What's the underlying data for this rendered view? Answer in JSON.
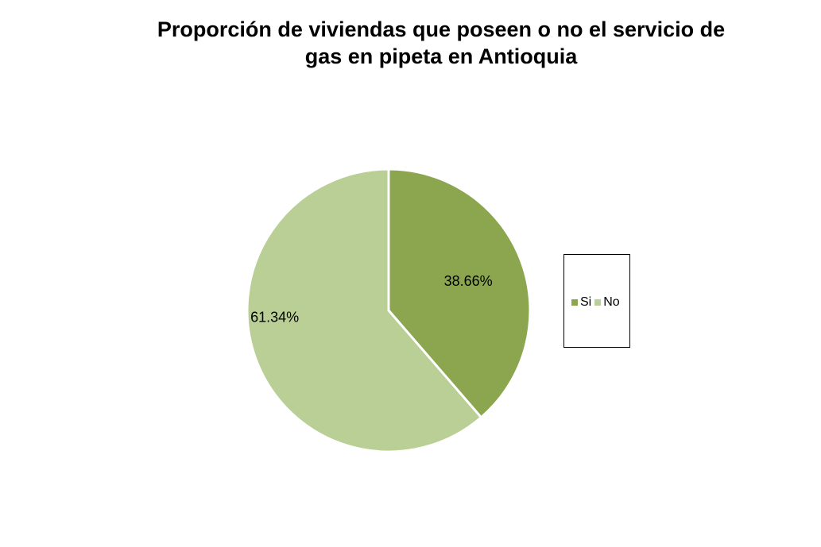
{
  "chart_data": {
    "type": "pie",
    "title": "Proporción de viviendas que poseen o no el servicio de gas en pipeta en Antioquia",
    "title_lines": [
      "Proporción de viviendas que poseen o no el servicio de",
      "gas en pipeta en Antioquia"
    ],
    "legend_position": "right",
    "slices": [
      {
        "name": "Si",
        "value": 38.66,
        "label": "38.66%",
        "color": "#8BA64E"
      },
      {
        "name": "No",
        "value": 61.34,
        "label": "61.34%",
        "color": "#B9CF96"
      }
    ]
  }
}
